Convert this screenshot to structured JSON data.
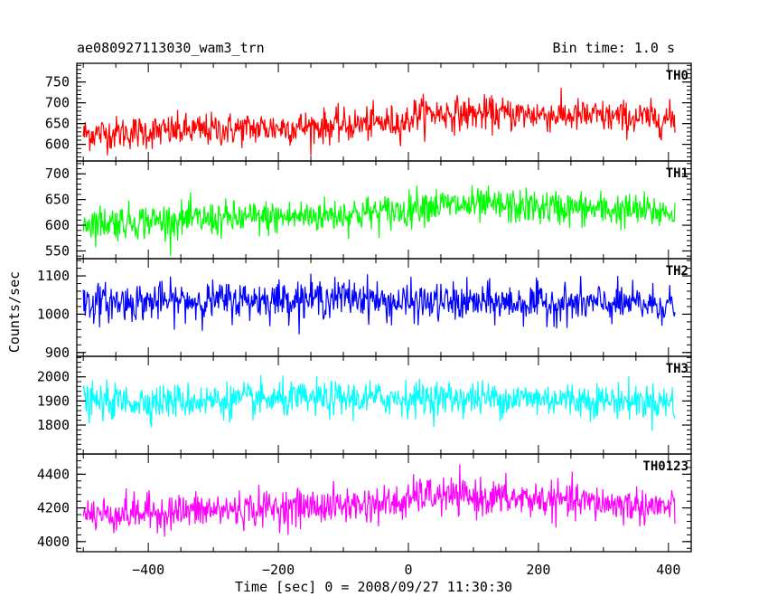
{
  "header": {
    "title": "ae080927113030_wam3_trn",
    "bin_time": "Bin time: 1.0 s"
  },
  "chart_data": {
    "type": "line",
    "xlabel": "Time [sec] 0 = 2008/09/27 11:30:30",
    "ylabel": "Counts/sec",
    "xlim": [
      -510,
      435
    ],
    "x_ticks": [
      -400,
      -200,
      0,
      200,
      400
    ],
    "x_range_data": [
      -500,
      410
    ],
    "bin_size": 1.0,
    "grid": false,
    "panels": [
      {
        "name": "TH0",
        "color": "#ff0000",
        "ylim": [
          560,
          795
        ],
        "y_ticks": [
          600,
          650,
          700,
          750
        ],
        "trend": [
          [
            -500,
            625
          ],
          [
            -300,
            635
          ],
          [
            -100,
            645
          ],
          [
            -60,
            650
          ],
          [
            0,
            655
          ],
          [
            10,
            675
          ],
          [
            200,
            672
          ],
          [
            410,
            660
          ]
        ],
        "noise_amplitude": 45
      },
      {
        "name": "TH1",
        "color": "#00ff00",
        "ylim": [
          535,
          725
        ],
        "y_ticks": [
          550,
          600,
          650,
          700
        ],
        "trend": [
          [
            -500,
            605
          ],
          [
            -200,
            615
          ],
          [
            0,
            628
          ],
          [
            10,
            640
          ],
          [
            200,
            635
          ],
          [
            410,
            625
          ]
        ],
        "noise_amplitude": 38
      },
      {
        "name": "TH2",
        "color": "#0000ff",
        "ylim": [
          890,
          1145
        ],
        "y_ticks": [
          900,
          1000,
          1100
        ],
        "trend": [
          [
            -500,
            1030
          ],
          [
            -300,
            1035
          ],
          [
            -60,
            1045
          ],
          [
            -40,
            1030
          ],
          [
            100,
            1030
          ],
          [
            410,
            1025
          ]
        ],
        "noise_amplitude": 55
      },
      {
        "name": "TH3",
        "color": "#00ffff",
        "ylim": [
          1680,
          2085
        ],
        "y_ticks": [
          1800,
          1900,
          2000
        ],
        "trend": [
          [
            -500,
            1895
          ],
          [
            -200,
            1905
          ],
          [
            0,
            1912
          ],
          [
            200,
            1910
          ],
          [
            410,
            1895
          ]
        ],
        "noise_amplitude": 80
      },
      {
        "name": "TH0123",
        "color": "#ff00ff",
        "ylim": [
          3940,
          4520
        ],
        "y_ticks": [
          4000,
          4200,
          4400
        ],
        "trend": [
          [
            -500,
            4160
          ],
          [
            -300,
            4185
          ],
          [
            -100,
            4215
          ],
          [
            0,
            4230
          ],
          [
            10,
            4275
          ],
          [
            200,
            4250
          ],
          [
            410,
            4200
          ]
        ],
        "noise_amplitude": 120
      }
    ]
  }
}
